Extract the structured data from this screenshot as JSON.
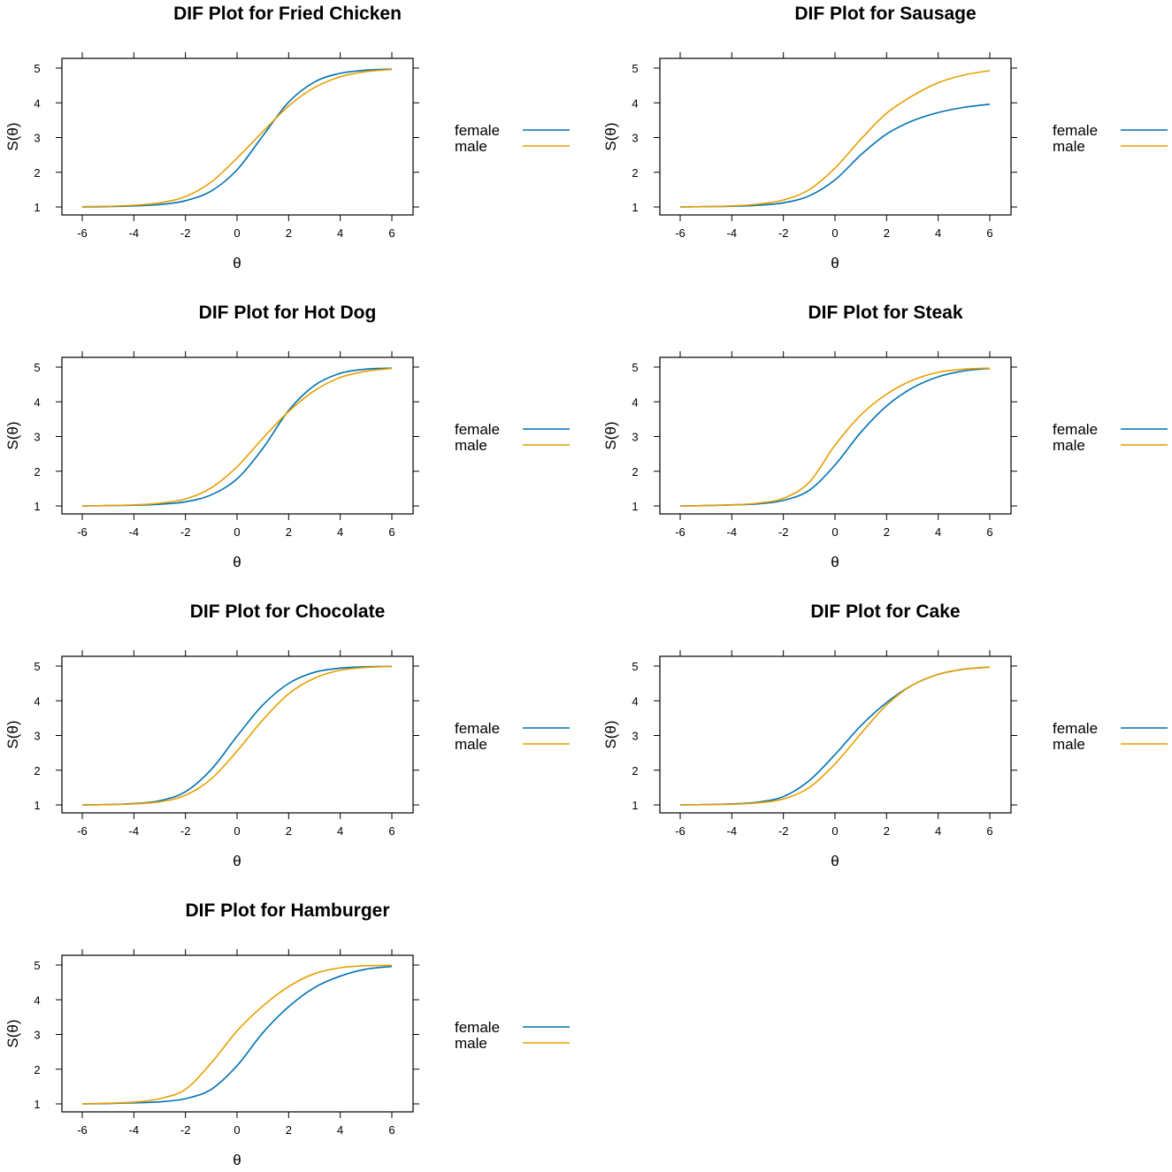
{
  "colors": {
    "female": "#0072B2",
    "male": "#E69F00"
  },
  "chart_data": [
    {
      "type": "line",
      "title": "DIF Plot for Fried Chicken",
      "xlabel": "θ",
      "ylabel": "S(θ)",
      "xlim": [
        -6,
        6
      ],
      "ylim": [
        1,
        5
      ],
      "xticks": [
        "-6",
        "-4",
        "-2",
        "0",
        "2",
        "4",
        "6"
      ],
      "yticks": [
        "1",
        "2",
        "3",
        "4",
        "5"
      ],
      "legend": [
        "female",
        "male"
      ],
      "x": [
        -6,
        -5,
        -4,
        -3,
        -2,
        -1,
        0,
        1,
        2,
        3,
        4,
        5,
        6
      ],
      "series": [
        {
          "name": "female",
          "values": [
            1.0,
            1.01,
            1.03,
            1.07,
            1.18,
            1.46,
            2.07,
            3.05,
            4.02,
            4.6,
            4.85,
            4.94,
            4.97
          ]
        },
        {
          "name": "male",
          "values": [
            1.01,
            1.02,
            1.05,
            1.12,
            1.3,
            1.72,
            2.41,
            3.17,
            3.91,
            4.44,
            4.75,
            4.9,
            4.96
          ]
        }
      ]
    },
    {
      "type": "line",
      "title": "DIF Plot for Sausage",
      "xlabel": "θ",
      "ylabel": "S(θ)",
      "xlim": [
        -6,
        6
      ],
      "ylim": [
        1,
        5
      ],
      "xticks": [
        "-6",
        "-4",
        "-2",
        "0",
        "2",
        "4",
        "6"
      ],
      "yticks": [
        "1",
        "2",
        "3",
        "4",
        "5"
      ],
      "legend": [
        "female",
        "male"
      ],
      "x": [
        -6,
        -5,
        -4,
        -3,
        -2,
        -1,
        0,
        1,
        2,
        3,
        4,
        5,
        6
      ],
      "series": [
        {
          "name": "female",
          "values": [
            1.0,
            1.01,
            1.02,
            1.05,
            1.12,
            1.32,
            1.78,
            2.5,
            3.1,
            3.48,
            3.72,
            3.87,
            3.96
          ]
        },
        {
          "name": "male",
          "values": [
            1.0,
            1.01,
            1.03,
            1.08,
            1.2,
            1.5,
            2.12,
            2.95,
            3.7,
            4.2,
            4.58,
            4.8,
            4.93
          ]
        }
      ]
    },
    {
      "type": "line",
      "title": "DIF Plot for Hot Dog",
      "xlabel": "θ",
      "ylabel": "S(θ)",
      "xlim": [
        -6,
        6
      ],
      "ylim": [
        1,
        5
      ],
      "xticks": [
        "-6",
        "-4",
        "-2",
        "0",
        "2",
        "4",
        "6"
      ],
      "yticks": [
        "1",
        "2",
        "3",
        "4",
        "5"
      ],
      "legend": [
        "female",
        "male"
      ],
      "x": [
        -6,
        -5,
        -4,
        -3,
        -2,
        -1,
        0,
        1,
        2,
        3,
        4,
        5,
        6
      ],
      "series": [
        {
          "name": "female",
          "values": [
            1.0,
            1.01,
            1.02,
            1.05,
            1.12,
            1.32,
            1.78,
            2.66,
            3.75,
            4.47,
            4.82,
            4.94,
            4.97
          ]
        },
        {
          "name": "male",
          "values": [
            1.0,
            1.01,
            1.03,
            1.08,
            1.2,
            1.52,
            2.13,
            2.95,
            3.72,
            4.32,
            4.7,
            4.88,
            4.96
          ]
        }
      ]
    },
    {
      "type": "line",
      "title": "DIF Plot for Steak",
      "xlabel": "θ",
      "ylabel": "S(θ)",
      "xlim": [
        -6,
        6
      ],
      "ylim": [
        1,
        5
      ],
      "xticks": [
        "-6",
        "-4",
        "-2",
        "0",
        "2",
        "4",
        "6"
      ],
      "yticks": [
        "1",
        "2",
        "3",
        "4",
        "5"
      ],
      "legend": [
        "female",
        "male"
      ],
      "x": [
        -6,
        -5,
        -4,
        -3,
        -2,
        -1,
        0,
        1,
        2,
        3,
        4,
        5,
        6
      ],
      "series": [
        {
          "name": "female",
          "values": [
            1.0,
            1.01,
            1.03,
            1.06,
            1.16,
            1.45,
            2.18,
            3.12,
            3.88,
            4.4,
            4.72,
            4.89,
            4.96
          ]
        },
        {
          "name": "male",
          "values": [
            1.0,
            1.01,
            1.03,
            1.08,
            1.22,
            1.68,
            2.75,
            3.62,
            4.22,
            4.62,
            4.85,
            4.94,
            4.97
          ]
        }
      ]
    },
    {
      "type": "line",
      "title": "DIF Plot for Chocolate",
      "xlabel": "θ",
      "ylabel": "S(θ)",
      "xlim": [
        -6,
        6
      ],
      "ylim": [
        1,
        5
      ],
      "xticks": [
        "-6",
        "-4",
        "-2",
        "0",
        "2",
        "4",
        "6"
      ],
      "yticks": [
        "1",
        "2",
        "3",
        "4",
        "5"
      ],
      "legend": [
        "female",
        "male"
      ],
      "x": [
        -6,
        -5,
        -4,
        -3,
        -2,
        -1,
        0,
        1,
        2,
        3,
        4,
        5,
        6
      ],
      "series": [
        {
          "name": "female",
          "values": [
            1.0,
            1.01,
            1.04,
            1.12,
            1.38,
            2.02,
            2.98,
            3.88,
            4.5,
            4.82,
            4.94,
            4.98,
            4.99
          ]
        },
        {
          "name": "male",
          "values": [
            1.0,
            1.01,
            1.03,
            1.09,
            1.28,
            1.75,
            2.55,
            3.45,
            4.2,
            4.65,
            4.88,
            4.96,
            4.99
          ]
        }
      ]
    },
    {
      "type": "line",
      "title": "DIF Plot for Cake",
      "xlabel": "θ",
      "ylabel": "S(θ)",
      "xlim": [
        -6,
        6
      ],
      "ylim": [
        1,
        5
      ],
      "xticks": [
        "-6",
        "-4",
        "-2",
        "0",
        "2",
        "4",
        "6"
      ],
      "yticks": [
        "1",
        "2",
        "3",
        "4",
        "5"
      ],
      "legend": [
        "female",
        "male"
      ],
      "x": [
        -6,
        -5,
        -4,
        -3,
        -2,
        -1,
        0,
        1,
        2,
        3,
        4,
        5,
        6
      ],
      "series": [
        {
          "name": "female",
          "values": [
            1.0,
            1.01,
            1.03,
            1.08,
            1.24,
            1.7,
            2.45,
            3.28,
            3.95,
            4.45,
            4.76,
            4.91,
            4.97
          ]
        },
        {
          "name": "male",
          "values": [
            1.0,
            1.01,
            1.02,
            1.06,
            1.17,
            1.5,
            2.18,
            3.05,
            3.88,
            4.45,
            4.76,
            4.91,
            4.97
          ]
        }
      ]
    },
    {
      "type": "line",
      "title": "DIF Plot for Hamburger",
      "xlabel": "θ",
      "ylabel": "S(θ)",
      "xlim": [
        -6,
        6
      ],
      "ylim": [
        1,
        5
      ],
      "xticks": [
        "-6",
        "-4",
        "-2",
        "0",
        "2",
        "4",
        "6"
      ],
      "yticks": [
        "1",
        "2",
        "3",
        "4",
        "5"
      ],
      "legend": [
        "female",
        "male"
      ],
      "x": [
        -6,
        -5,
        -4,
        -3,
        -2,
        -1,
        0,
        1,
        2,
        3,
        4,
        5,
        6
      ],
      "series": [
        {
          "name": "female",
          "values": [
            1.0,
            1.01,
            1.03,
            1.06,
            1.15,
            1.42,
            2.1,
            3.05,
            3.8,
            4.35,
            4.68,
            4.88,
            4.96
          ]
        },
        {
          "name": "male",
          "values": [
            1.0,
            1.02,
            1.05,
            1.15,
            1.42,
            2.18,
            3.1,
            3.82,
            4.38,
            4.75,
            4.92,
            4.98,
            4.99
          ]
        }
      ]
    }
  ]
}
